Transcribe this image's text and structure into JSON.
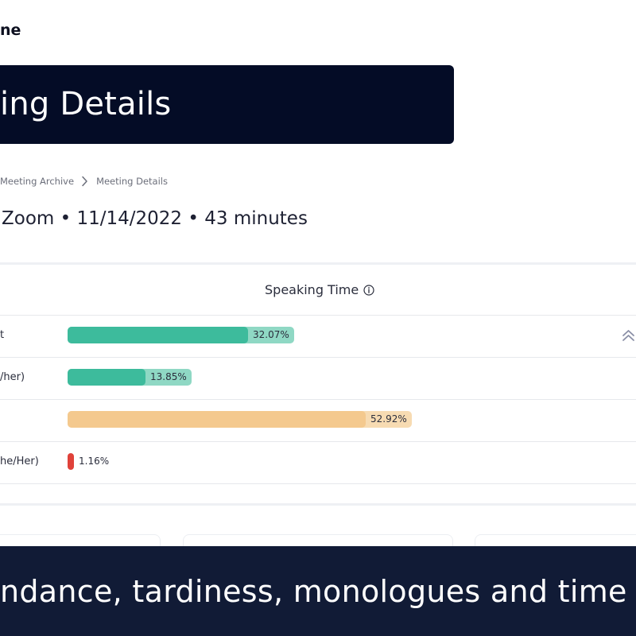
{
  "brand": {
    "name": "ne"
  },
  "header": {
    "title": "ing Details"
  },
  "breadcrumb": {
    "items": [
      "Meeting Archive",
      "Meeting Details"
    ]
  },
  "meeting": {
    "summary": "Zoom • 11/14/2022 • 43 minutes"
  },
  "speaking_time": {
    "title": "Speaking Time",
    "rows": [
      {
        "name": "t",
        "percent": 32.07,
        "label": "32.07%",
        "color": "#3dbb9c",
        "track_color": "#8fd8c4"
      },
      {
        "name": "/her)",
        "percent": 13.85,
        "label": "13.85%",
        "color": "#3dbb9c",
        "track_color": "#8fd8c4"
      },
      {
        "name": "",
        "percent": 52.92,
        "label": "52.92%",
        "color": "#f4c98e",
        "track_color": "#f7dbb2"
      },
      {
        "name": "he/Her)",
        "percent": 1.16,
        "label": "1.16%",
        "color": "#e0423a",
        "track_color": ""
      }
    ]
  },
  "caption": {
    "text": "ndance, tardiness, monologues and time w"
  },
  "colors": {
    "banner": "#040c26",
    "caption_bg": "#111b36",
    "accent_green": "#3dbb9c",
    "accent_orange": "#f4c98e",
    "accent_red": "#e0423a"
  }
}
